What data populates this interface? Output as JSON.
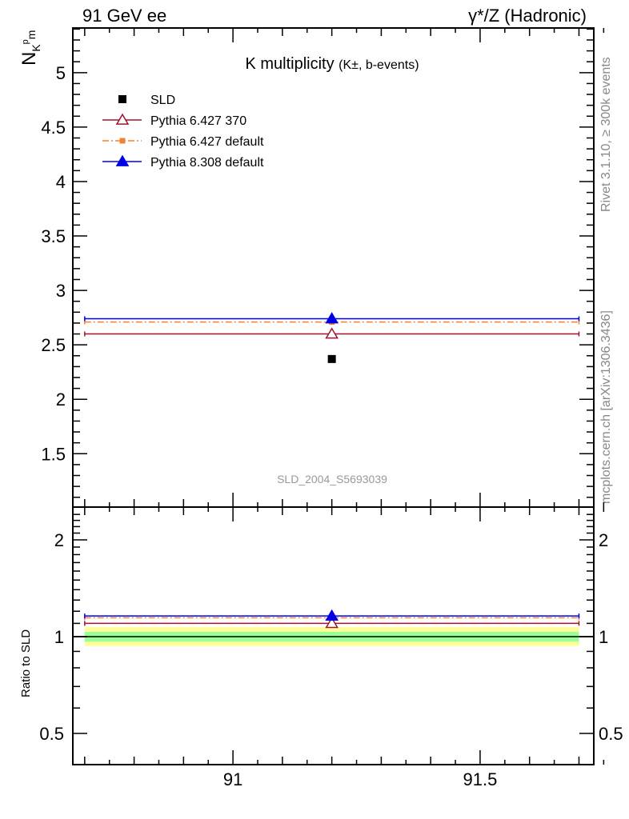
{
  "header": {
    "left": "91 GeV ee",
    "right": "γ*/Z (Hadronic)"
  },
  "side_labels": {
    "rivet": "Rivet 3.1.10, ≥ 300k events",
    "mcplots": "mcplots.cern.ch [arXiv:1306.3436]"
  },
  "chart_data": [
    {
      "type": "scatter",
      "title": "K multiplicity",
      "title_small": "(K±, b-events)",
      "ylabel": {
        "main": "N",
        "sub": "K",
        "sup": "p",
        "sub2": "m"
      },
      "xlim": [
        90.676,
        91.73
      ],
      "ylim": [
        1.01,
        5.41
      ],
      "yticks": [
        1.5,
        2,
        2.5,
        3,
        3.5,
        4,
        4.5,
        5
      ],
      "ytick_labels": [
        "1.5",
        "2",
        "2.5",
        "3",
        "3.5",
        "4",
        "4.5",
        "5"
      ],
      "watermark": "SLD_2004_S5693039",
      "legend_placement": "top-left",
      "series": [
        {
          "name": "SLD",
          "kind": "data",
          "color": "#000000",
          "marker": "square",
          "x": 91.2,
          "xerr": [
            0,
            0
          ],
          "y": 2.37
        },
        {
          "name": "Pythia 6.427 370",
          "kind": "mc",
          "color": "#a0142a",
          "marker": "open-triangle",
          "line": "solid",
          "x": 91.2,
          "xrange": [
            90.7,
            91.7
          ],
          "y": 2.6
        },
        {
          "name": "Pythia 6.427 default",
          "kind": "mc",
          "color": "#f58232",
          "marker": "square",
          "line": "dashdot",
          "x": 91.2,
          "xrange": [
            90.7,
            91.7
          ],
          "y": 2.71
        },
        {
          "name": "Pythia 8.308 default",
          "kind": "mc",
          "color": "#0000e6",
          "marker": "triangle",
          "line": "solid",
          "x": 91.2,
          "xrange": [
            90.7,
            91.7
          ],
          "y": 2.74
        }
      ]
    },
    {
      "type": "line",
      "ylabel": "Ratio to SLD",
      "yscale": "log",
      "xlim": [
        90.676,
        91.73
      ],
      "ylim": [
        0.4,
        2.53
      ],
      "xticks": [
        91,
        91.5
      ],
      "xtick_labels": [
        "91",
        "91.5"
      ],
      "yticks": [
        0.5,
        1,
        2
      ],
      "ytick_labels": [
        "0.5",
        "1",
        "2"
      ],
      "bands": [
        {
          "name": "2-sigma",
          "color": "#ffff99",
          "low": 0.935,
          "high": 1.07
        },
        {
          "name": "1-sigma",
          "color": "#99ff99",
          "low": 0.965,
          "high": 1.035
        }
      ],
      "series": [
        {
          "name": "Pythia 6.427 370",
          "color": "#a0142a",
          "marker": "open-triangle",
          "line": "solid",
          "x": 91.2,
          "xrange": [
            90.7,
            91.7
          ],
          "y": 1.1
        },
        {
          "name": "Pythia 6.427 default",
          "color": "#f58232",
          "marker": "square",
          "line": "dashdot",
          "x": 91.2,
          "xrange": [
            90.7,
            91.7
          ],
          "y": 1.145
        },
        {
          "name": "Pythia 8.308 default",
          "color": "#0000e6",
          "marker": "triangle",
          "line": "solid",
          "x": 91.2,
          "xrange": [
            90.7,
            91.7
          ],
          "y": 1.16
        }
      ]
    }
  ]
}
